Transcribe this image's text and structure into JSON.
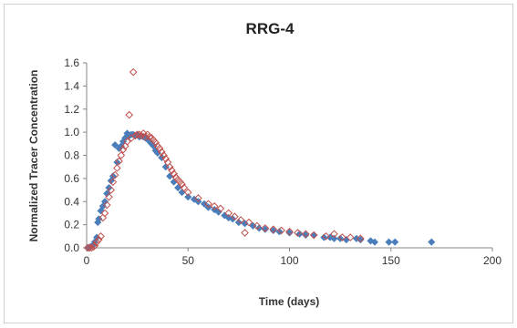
{
  "chart_data": {
    "type": "scatter",
    "title": "RRG-4",
    "xlabel": "Time (days)",
    "ylabel": "Normalized Tracer  Concentration",
    "xlim": [
      0,
      200
    ],
    "ylim": [
      0,
      1.6
    ],
    "xticks": [
      "0",
      "50",
      "100",
      "150",
      "200"
    ],
    "yticks": [
      "0.0",
      "0.2",
      "0.4",
      "0.6",
      "0.8",
      "1.0",
      "1.2",
      "1.4",
      "1.6"
    ],
    "grid": false,
    "legend": "none",
    "series": [
      {
        "marker": "diamond-filled",
        "color": "#4a7ebb",
        "points": [
          [
            1,
            0.0
          ],
          [
            2,
            0.01
          ],
          [
            3,
            0.02
          ],
          [
            4,
            0.05
          ],
          [
            5,
            0.09
          ],
          [
            5.5,
            0.22
          ],
          [
            6,
            0.25
          ],
          [
            7,
            0.32
          ],
          [
            8,
            0.36
          ],
          [
            9,
            0.4
          ],
          [
            10,
            0.47
          ],
          [
            11,
            0.52
          ],
          [
            12,
            0.58
          ],
          [
            13,
            0.62
          ],
          [
            14,
            0.89
          ],
          [
            15,
            0.74
          ],
          [
            16,
            0.86
          ],
          [
            17,
            0.88
          ],
          [
            18,
            0.92
          ],
          [
            19,
            0.95
          ],
          [
            20,
            0.99
          ],
          [
            21,
            0.97
          ],
          [
            22,
            0.98
          ],
          [
            23,
            0.98
          ],
          [
            24,
            0.97
          ],
          [
            25,
            0.98
          ],
          [
            26,
            0.96
          ],
          [
            27,
            0.97
          ],
          [
            28,
            0.96
          ],
          [
            29,
            0.95
          ],
          [
            30,
            0.94
          ],
          [
            31,
            0.92
          ],
          [
            32,
            0.9
          ],
          [
            33,
            0.88
          ],
          [
            34,
            0.84
          ],
          [
            35,
            0.82
          ],
          [
            37,
            0.78
          ],
          [
            39,
            0.7
          ],
          [
            41,
            0.62
          ],
          [
            43,
            0.57
          ],
          [
            45,
            0.52
          ],
          [
            47,
            0.48
          ],
          [
            50,
            0.44
          ],
          [
            53,
            0.42
          ],
          [
            55,
            0.4
          ],
          [
            58,
            0.38
          ],
          [
            60,
            0.35
          ],
          [
            63,
            0.33
          ],
          [
            65,
            0.31
          ],
          [
            68,
            0.28
          ],
          [
            70,
            0.26
          ],
          [
            72,
            0.25
          ],
          [
            75,
            0.22
          ],
          [
            78,
            0.21
          ],
          [
            82,
            0.19
          ],
          [
            85,
            0.17
          ],
          [
            88,
            0.16
          ],
          [
            92,
            0.15
          ],
          [
            95,
            0.14
          ],
          [
            100,
            0.13
          ],
          [
            105,
            0.12
          ],
          [
            108,
            0.11
          ],
          [
            112,
            0.11
          ],
          [
            117,
            0.09
          ],
          [
            120,
            0.09
          ],
          [
            122,
            0.08
          ],
          [
            125,
            0.08
          ],
          [
            128,
            0.07
          ],
          [
            133,
            0.08
          ],
          [
            135,
            0.07
          ],
          [
            140,
            0.06
          ],
          [
            142,
            0.05
          ],
          [
            149,
            0.05
          ],
          [
            152,
            0.05
          ],
          [
            170,
            0.05
          ]
        ]
      },
      {
        "marker": "diamond-open",
        "color": "#c0504d",
        "points": [
          [
            0.5,
            0.0
          ],
          [
            1.5,
            0.0
          ],
          [
            2.5,
            0.0
          ],
          [
            3.5,
            0.01
          ],
          [
            4,
            0.02
          ],
          [
            5,
            0.05
          ],
          [
            6,
            0.07
          ],
          [
            7,
            0.1
          ],
          [
            8,
            0.26
          ],
          [
            9,
            0.3
          ],
          [
            10,
            0.37
          ],
          [
            11,
            0.44
          ],
          [
            12,
            0.5
          ],
          [
            13,
            0.57
          ],
          [
            14,
            0.63
          ],
          [
            15,
            0.69
          ],
          [
            16,
            0.75
          ],
          [
            17,
            0.8
          ],
          [
            18,
            0.85
          ],
          [
            19,
            0.88
          ],
          [
            20,
            0.92
          ],
          [
            21,
            1.15
          ],
          [
            22,
            0.95
          ],
          [
            23,
            1.52
          ],
          [
            24,
            0.97
          ],
          [
            25,
            0.98
          ],
          [
            26,
            0.98
          ],
          [
            27,
            0.97
          ],
          [
            28,
            0.99
          ],
          [
            29,
            0.96
          ],
          [
            30,
            0.98
          ],
          [
            31,
            0.96
          ],
          [
            32,
            0.95
          ],
          [
            33,
            0.93
          ],
          [
            34,
            0.91
          ],
          [
            35,
            0.88
          ],
          [
            36,
            0.86
          ],
          [
            37,
            0.83
          ],
          [
            38,
            0.8
          ],
          [
            39,
            0.77
          ],
          [
            40,
            0.74
          ],
          [
            41,
            0.7
          ],
          [
            42,
            0.67
          ],
          [
            43,
            0.64
          ],
          [
            44,
            0.61
          ],
          [
            45,
            0.59
          ],
          [
            46,
            0.57
          ],
          [
            47,
            0.55
          ],
          [
            48,
            0.52
          ],
          [
            50,
            0.48
          ],
          [
            55,
            0.43
          ],
          [
            60,
            0.38
          ],
          [
            63,
            0.36
          ],
          [
            66,
            0.34
          ],
          [
            70,
            0.3
          ],
          [
            73,
            0.27
          ],
          [
            76,
            0.24
          ],
          [
            78,
            0.13
          ],
          [
            80,
            0.22
          ],
          [
            84,
            0.19
          ],
          [
            88,
            0.17
          ],
          [
            92,
            0.16
          ],
          [
            96,
            0.15
          ],
          [
            100,
            0.14
          ],
          [
            104,
            0.13
          ],
          [
            108,
            0.12
          ],
          [
            112,
            0.11
          ],
          [
            118,
            0.1
          ],
          [
            122,
            0.12
          ],
          [
            126,
            0.09
          ],
          [
            130,
            0.09
          ],
          [
            135,
            0.08
          ]
        ]
      }
    ]
  }
}
